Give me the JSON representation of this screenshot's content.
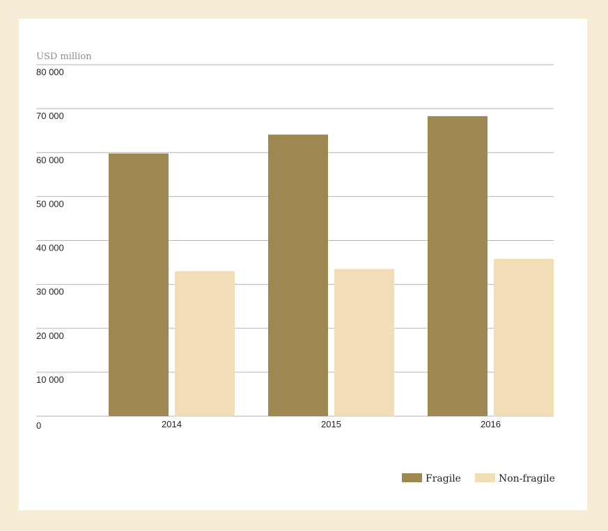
{
  "colors": {
    "frame": "#f7ecd6",
    "panel": "#ffffff",
    "fragile": "#9e8852",
    "non_fragile": "#f1deb7",
    "grid": "#b5b5b5"
  },
  "chart_data": {
    "type": "bar",
    "title": "",
    "xlabel": "",
    "ylabel": "USD million",
    "ylim": [
      0,
      80000
    ],
    "yticks": [
      0,
      10000,
      20000,
      30000,
      40000,
      50000,
      60000,
      70000,
      80000
    ],
    "ytick_labels": [
      "0",
      "10 000",
      "20 000",
      "30 000",
      "40 000",
      "50 000",
      "60 000",
      "70 000",
      "80 000"
    ],
    "categories": [
      "2014",
      "2015",
      "2016"
    ],
    "grid": true,
    "legend_position": "bottom-right",
    "series": [
      {
        "name": "Fragile",
        "values": [
          59800,
          64100,
          68300
        ]
      },
      {
        "name": "Non-fragile",
        "values": [
          33000,
          33500,
          35800
        ]
      }
    ]
  }
}
